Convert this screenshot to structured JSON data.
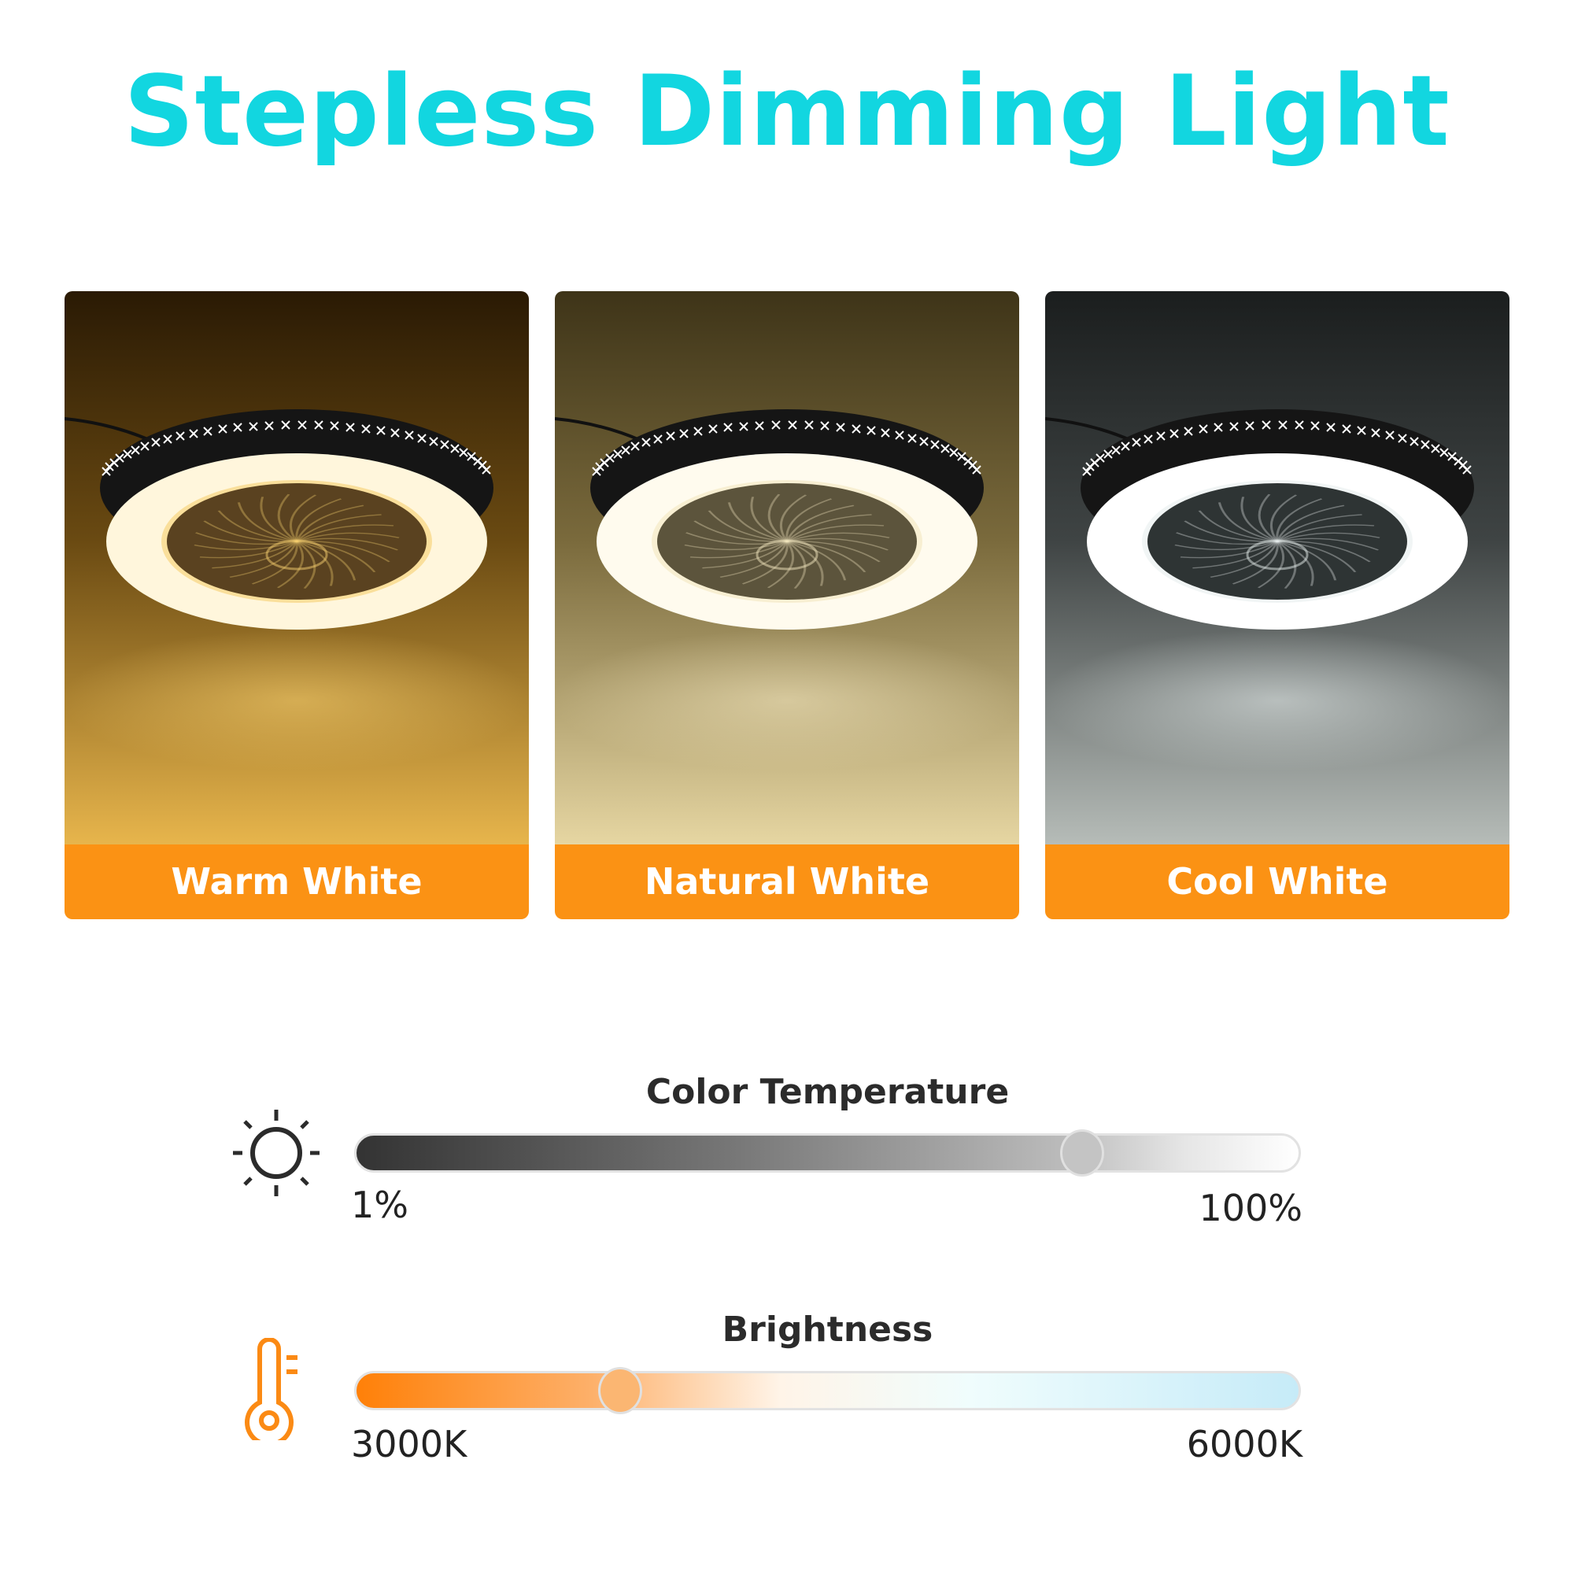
{
  "title": "Stepless Dimming Light",
  "panels": [
    {
      "label": "Warm White",
      "tone": "warm"
    },
    {
      "label": "Natural White",
      "tone": "natural"
    },
    {
      "label": "Cool White",
      "tone": "cool"
    }
  ],
  "colors": {
    "title": "#12d6e0",
    "label_band": "#fb9214",
    "accent": "#fb8a14"
  },
  "sliders": [
    {
      "title": "Color Temperature",
      "icon": "sun-icon",
      "min_label": "1%",
      "max_label": "100%",
      "value_fraction": 0.77
    },
    {
      "title": "Brightness",
      "icon": "thermometer-icon",
      "min_label": "3000K",
      "max_label": "6000K",
      "value_fraction": 0.28
    }
  ]
}
